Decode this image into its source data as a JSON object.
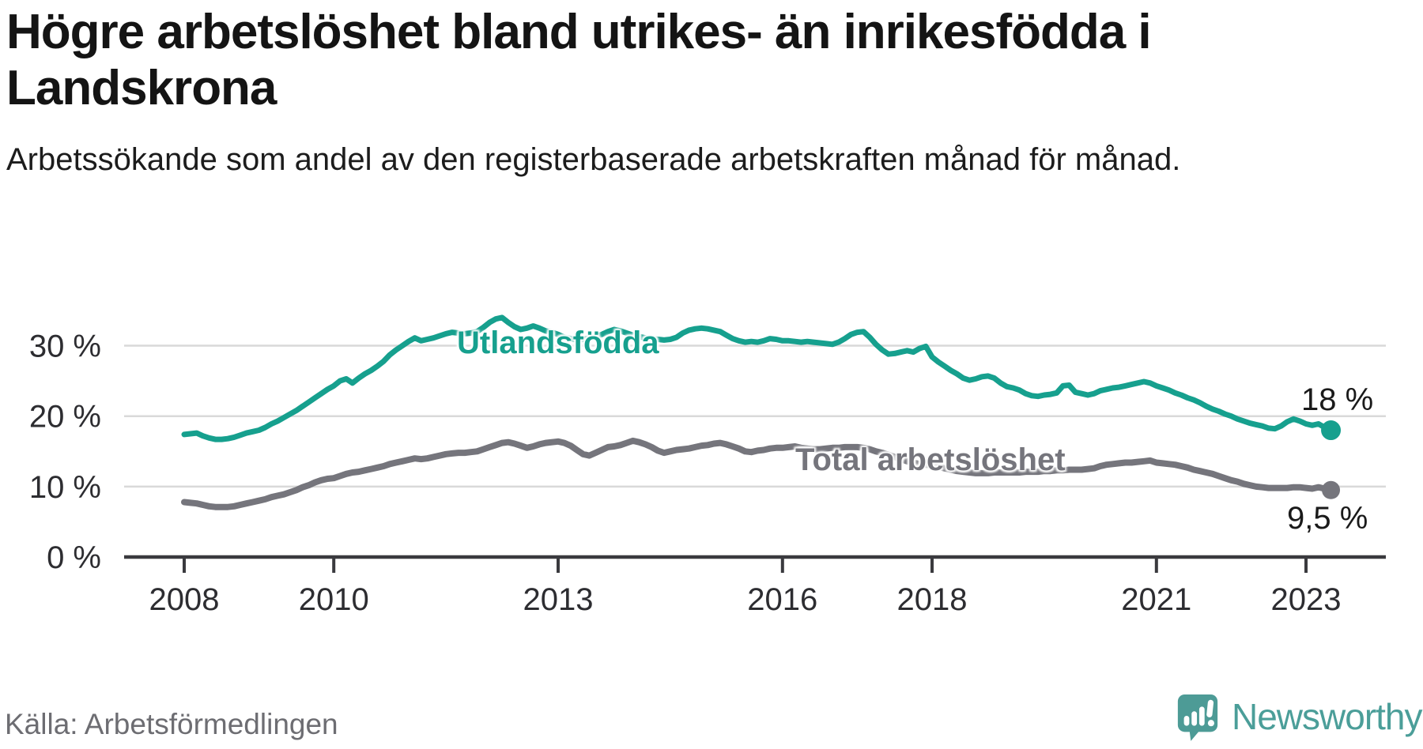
{
  "header": {
    "title": "Högre arbetslöshet bland utrikes- än inrikesfödda i Landskrona",
    "subtitle": "Arbetssökande som andel av den registerbaserade arbetskraften månad för månad."
  },
  "footer": {
    "source": "Källa: Arbetsförmedlingen"
  },
  "branding": {
    "name": "Newsworthy",
    "color": "#4b9e99"
  },
  "colors": {
    "series_foreign_born": "#16a08e",
    "series_total": "#75757c",
    "gridline": "#d9d9d9",
    "axis": "#3a3a3e",
    "text_dark": "#141414",
    "text_muted": "#6d6d72"
  },
  "chart_data": {
    "type": "line",
    "title": "Högre arbetslöshet bland utrikes- än inrikesfödda i Landskrona",
    "subtitle": "Arbetssökande som andel av den registerbaserade arbetskraften månad för månad.",
    "source": "Källa: Arbetsförmedlingen",
    "x_unit": "month",
    "x_start": "2008-01",
    "x_end": "2023-05",
    "xlabel": "",
    "ylabel": "",
    "ylim": [
      0,
      41
    ],
    "grid": "horizontal",
    "legend_position": "inline-labels",
    "y_ticks": [
      {
        "value": 0,
        "label": "0 %"
      },
      {
        "value": 10,
        "label": "10 %"
      },
      {
        "value": 20,
        "label": "20 %"
      },
      {
        "value": 30,
        "label": "30 %"
      }
    ],
    "x_ticks": [
      {
        "value": 2008,
        "label": "2008"
      },
      {
        "value": 2010,
        "label": "2010"
      },
      {
        "value": 2013,
        "label": "2013"
      },
      {
        "value": 2016,
        "label": "2016"
      },
      {
        "value": 2018,
        "label": "2018"
      },
      {
        "value": 2021,
        "label": "2021"
      },
      {
        "value": 2023,
        "label": "2023"
      }
    ],
    "series": [
      {
        "name": "Utlandsfödda",
        "color": "#16a08e",
        "end_label": "18 %",
        "end_value": 18,
        "values": [
          17.4,
          17.5,
          17.6,
          17.2,
          16.9,
          16.7,
          16.7,
          16.8,
          17.0,
          17.3,
          17.6,
          17.8,
          18.0,
          18.4,
          18.9,
          19.3,
          19.8,
          20.3,
          20.8,
          21.4,
          22.0,
          22.6,
          23.2,
          23.8,
          24.3,
          25.0,
          25.3,
          24.7,
          25.4,
          26.0,
          26.5,
          27.1,
          27.8,
          28.7,
          29.4,
          30.0,
          30.6,
          31.1,
          30.7,
          30.9,
          31.1,
          31.4,
          31.7,
          31.9,
          31.8,
          31.7,
          31.8,
          32.0,
          32.6,
          33.3,
          33.8,
          34.0,
          33.3,
          32.7,
          32.3,
          32.5,
          32.8,
          32.5,
          32.1,
          31.9,
          31.6,
          31.2,
          31.0,
          30.8,
          30.9,
          31.1,
          31.3,
          31.6,
          32.0,
          32.3,
          32.1,
          31.8,
          31.5,
          31.3,
          31.1,
          31.0,
          30.9,
          30.8,
          30.9,
          31.2,
          31.8,
          32.2,
          32.4,
          32.5,
          32.4,
          32.2,
          32.0,
          31.5,
          31.0,
          30.7,
          30.5,
          30.6,
          30.5,
          30.7,
          31.0,
          30.9,
          30.7,
          30.7,
          30.6,
          30.5,
          30.6,
          30.5,
          30.4,
          30.3,
          30.2,
          30.5,
          31.0,
          31.6,
          31.9,
          32.0,
          31.2,
          30.2,
          29.4,
          28.8,
          28.9,
          29.1,
          29.3,
          29.1,
          29.6,
          29.9,
          28.4,
          27.7,
          27.1,
          26.5,
          26.0,
          25.4,
          25.1,
          25.3,
          25.6,
          25.7,
          25.4,
          24.7,
          24.2,
          24.0,
          23.7,
          23.2,
          22.9,
          22.8,
          23.0,
          23.1,
          23.3,
          24.3,
          24.4,
          23.4,
          23.2,
          23.0,
          23.2,
          23.6,
          23.8,
          24.0,
          24.1,
          24.3,
          24.5,
          24.7,
          24.9,
          24.7,
          24.3,
          24.0,
          23.7,
          23.3,
          23.0,
          22.6,
          22.3,
          21.9,
          21.4,
          21.0,
          20.7,
          20.3,
          20.0,
          19.6,
          19.3,
          19.0,
          18.8,
          18.6,
          18.3,
          18.2,
          18.6,
          19.2,
          19.6,
          19.3,
          18.9,
          18.7,
          18.9,
          18.4,
          18.0
        ]
      },
      {
        "name": "Total arbetslöshet",
        "color": "#75757c",
        "end_label": "9,5 %",
        "end_value": 9.5,
        "values": [
          7.8,
          7.7,
          7.6,
          7.4,
          7.2,
          7.1,
          7.1,
          7.1,
          7.2,
          7.4,
          7.6,
          7.8,
          8.0,
          8.2,
          8.5,
          8.7,
          8.9,
          9.2,
          9.5,
          9.9,
          10.2,
          10.6,
          10.9,
          11.1,
          11.2,
          11.5,
          11.8,
          12.0,
          12.1,
          12.3,
          12.5,
          12.7,
          12.9,
          13.2,
          13.4,
          13.6,
          13.8,
          14.0,
          13.9,
          14.0,
          14.2,
          14.4,
          14.6,
          14.7,
          14.8,
          14.8,
          14.9,
          15.0,
          15.3,
          15.6,
          15.9,
          16.2,
          16.3,
          16.1,
          15.8,
          15.5,
          15.7,
          16.0,
          16.2,
          16.3,
          16.4,
          16.2,
          15.8,
          15.2,
          14.6,
          14.4,
          14.8,
          15.2,
          15.6,
          15.7,
          15.9,
          16.2,
          16.5,
          16.3,
          16.0,
          15.6,
          15.1,
          14.8,
          15.0,
          15.2,
          15.3,
          15.4,
          15.6,
          15.8,
          15.9,
          16.1,
          16.2,
          16.0,
          15.7,
          15.4,
          15.0,
          14.9,
          15.1,
          15.2,
          15.4,
          15.5,
          15.5,
          15.6,
          15.7,
          15.5,
          15.4,
          15.3,
          15.3,
          15.4,
          15.5,
          15.5,
          15.6,
          15.6,
          15.6,
          15.5,
          15.3,
          15.0,
          14.8,
          14.5,
          14.2,
          13.9,
          13.6,
          13.4,
          13.2,
          13.1,
          13.0,
          12.8,
          12.6,
          12.4,
          12.2,
          12.1,
          12.0,
          11.9,
          11.9,
          11.9,
          12.0,
          12.0,
          12.0,
          12.0,
          12.0,
          12.1,
          12.1,
          12.1,
          12.2,
          12.2,
          12.3,
          12.3,
          12.4,
          12.4,
          12.4,
          12.5,
          12.6,
          12.9,
          13.1,
          13.2,
          13.3,
          13.4,
          13.4,
          13.5,
          13.6,
          13.7,
          13.4,
          13.3,
          13.2,
          13.1,
          12.9,
          12.7,
          12.4,
          12.2,
          12.0,
          11.8,
          11.5,
          11.2,
          10.9,
          10.7,
          10.4,
          10.2,
          10.0,
          9.9,
          9.8,
          9.8,
          9.8,
          9.8,
          9.9,
          9.9,
          9.8,
          9.7,
          9.9,
          9.7,
          9.5
        ]
      }
    ]
  }
}
